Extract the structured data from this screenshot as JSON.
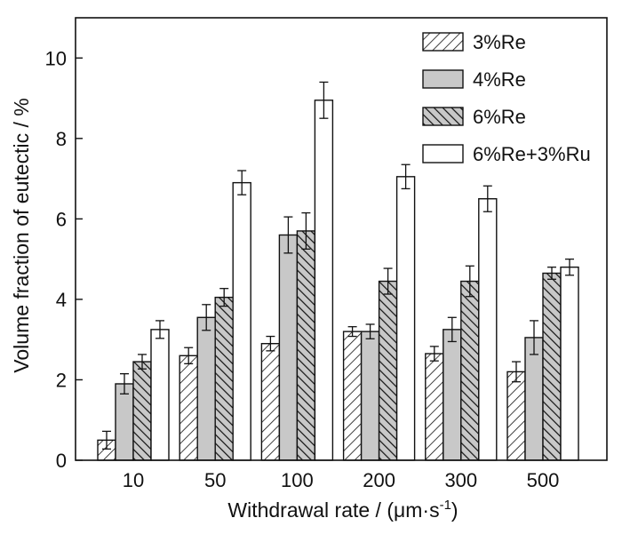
{
  "chart_data": {
    "type": "bar",
    "xlabel": "Withdrawal rate / (μm·s",
    "xlabel_sup": "-1",
    "xlabel_close": ")",
    "ylabel": "Volume fraction of eutectic / %",
    "categories": [
      "10",
      "50",
      "100",
      "200",
      "300",
      "500"
    ],
    "ylim": [
      0,
      11
    ],
    "yticks": [
      0,
      2,
      4,
      6,
      8,
      10
    ],
    "grid": false,
    "legend_position": "top-right",
    "series": [
      {
        "name": "3%Re",
        "pattern": "hatch-forward",
        "values": [
          0.5,
          2.6,
          2.9,
          3.2,
          2.65,
          2.2
        ],
        "errors": [
          0.22,
          0.2,
          0.18,
          0.12,
          0.18,
          0.25
        ]
      },
      {
        "name": "4%Re",
        "pattern": "solid-gray",
        "values": [
          1.9,
          3.55,
          5.6,
          3.2,
          3.25,
          3.05
        ],
        "errors": [
          0.25,
          0.32,
          0.45,
          0.18,
          0.3,
          0.42
        ]
      },
      {
        "name": "6%Re",
        "pattern": "hatch-back",
        "values": [
          2.45,
          4.05,
          5.7,
          4.45,
          4.45,
          4.65
        ],
        "errors": [
          0.18,
          0.22,
          0.45,
          0.32,
          0.38,
          0.15
        ]
      },
      {
        "name": "6%Re+3%Ru",
        "pattern": "open",
        "values": [
          3.25,
          6.9,
          8.95,
          7.05,
          6.5,
          4.8
        ],
        "errors": [
          0.22,
          0.3,
          0.45,
          0.3,
          0.32,
          0.2
        ]
      }
    ],
    "colors": {
      "bar_gray": "#c8c8c8",
      "stroke": "#111111",
      "background": "#ffffff"
    }
  }
}
